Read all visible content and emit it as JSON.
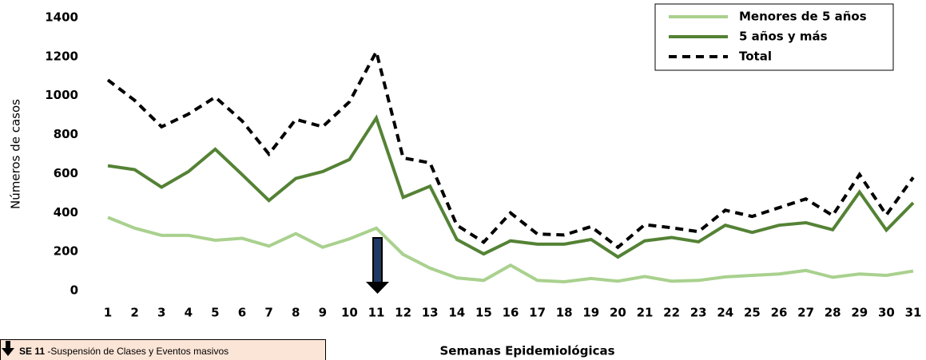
{
  "chart_data": {
    "type": "line",
    "y_label": "Números de casos",
    "x_label": "Semanas Epidemiológicas",
    "categories": [
      "1",
      "2",
      "3",
      "4",
      "5",
      "6",
      "7",
      "8",
      "9",
      "10",
      "11",
      "12",
      "13",
      "14",
      "15",
      "16",
      "17",
      "18",
      "19",
      "20",
      "21",
      "22",
      "23",
      "24",
      "25",
      "26",
      "27",
      "28",
      "29",
      "30",
      "31"
    ],
    "series": [
      {
        "name": "Menores de 5 años",
        "color": "#a9d18e",
        "dashed": false,
        "values": [
          375,
          320,
          283,
          283,
          258,
          268,
          228,
          292,
          222,
          265,
          320,
          185,
          115,
          65,
          52,
          130,
          52,
          45,
          62,
          48,
          72,
          48,
          52,
          70,
          78,
          85,
          103,
          68,
          85,
          78,
          100
        ]
      },
      {
        "name": "5 años y más",
        "color": "#548235",
        "dashed": false,
        "values": [
          640,
          620,
          530,
          610,
          725,
          595,
          462,
          575,
          610,
          672,
          885,
          478,
          535,
          262,
          188,
          255,
          238,
          238,
          262,
          172,
          255,
          272,
          250,
          335,
          298,
          335,
          348,
          312,
          505,
          310,
          450
        ]
      },
      {
        "name": "Total",
        "color": "#000000",
        "dashed": true,
        "values": [
          1080,
          975,
          840,
          905,
          992,
          870,
          700,
          878,
          840,
          968,
          1225,
          680,
          655,
          335,
          248,
          398,
          290,
          285,
          328,
          222,
          338,
          322,
          302,
          412,
          380,
          425,
          470,
          385,
          595,
          388,
          580
        ]
      }
    ],
    "ylim": [
      0,
      1400
    ],
    "yticks": [
      0,
      200,
      400,
      600,
      800,
      1000,
      1200,
      1400
    ],
    "grid": false,
    "legend": "top-right",
    "annotation": {
      "bold": "SE 11",
      "text": " -Suspensión de Clases  y Eventos masivos"
    }
  }
}
